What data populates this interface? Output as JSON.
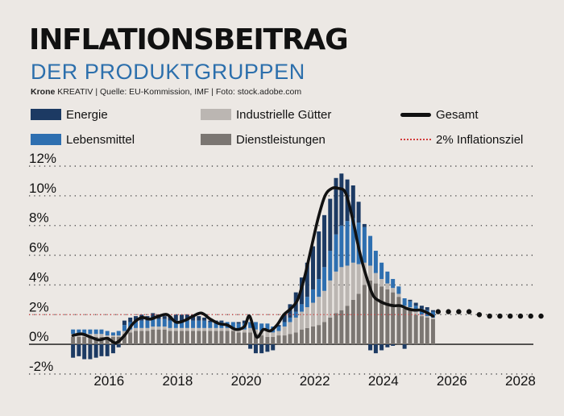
{
  "header": {
    "title": "INFLATIONSBEITRAG",
    "subtitle": "DER PRODUKTGRUPPEN",
    "source_brand": "Krone",
    "source_rest": " KREATIV | Quelle: EU-Kommission, IMF | Foto: stock.adobe.com"
  },
  "colors": {
    "background": "#ece8e4",
    "energie": "#1c3a63",
    "lebensmittel": "#2e6fb0",
    "industrielle_gueter": "#bbb6b2",
    "dienstleistungen": "#7b7672",
    "gesamt": "#111111",
    "target": "#d23c3c",
    "subtitle": "#2c6fac"
  },
  "legend": {
    "energie": "Energie",
    "lebensmittel": "Lebensmittel",
    "industrielle_gueter": "Industrielle Gütter",
    "dienstleistungen": "Dienstleistungen",
    "gesamt": "Gesamt",
    "target": "2% Inflationsziel"
  },
  "chart_data": {
    "type": "bar",
    "stacked": true,
    "grid": true,
    "legend_position": "top",
    "xlim": [
      2014.7,
      2028.8
    ],
    "ylim": [
      -2.6,
      12.6
    ],
    "x_ticks": [
      {
        "value": 2016,
        "label": "2016"
      },
      {
        "value": 2018,
        "label": "2018"
      },
      {
        "value": 2020,
        "label": "2020"
      },
      {
        "value": 2022,
        "label": "2022"
      },
      {
        "value": 2024,
        "label": "2024"
      },
      {
        "value": 2026,
        "label": "2026"
      },
      {
        "value": 2028,
        "label": "2028"
      }
    ],
    "y_ticks": [
      {
        "value": 12,
        "label": "12%"
      },
      {
        "value": 10,
        "label": "10%"
      },
      {
        "value": 8,
        "label": "8%"
      },
      {
        "value": 6,
        "label": "6%"
      },
      {
        "value": 4,
        "label": "4%"
      },
      {
        "value": 2,
        "label": "2%"
      },
      {
        "value": 0,
        "label": "0%"
      },
      {
        "value": -2,
        "label": "-2%"
      }
    ],
    "target": 2,
    "x": [
      2014.95,
      2015.12,
      2015.28,
      2015.45,
      2015.62,
      2015.78,
      2015.95,
      2016.12,
      2016.28,
      2016.45,
      2016.62,
      2016.78,
      2016.95,
      2017.12,
      2017.28,
      2017.45,
      2017.62,
      2017.78,
      2017.95,
      2018.12,
      2018.28,
      2018.45,
      2018.62,
      2018.78,
      2018.95,
      2019.12,
      2019.28,
      2019.45,
      2019.62,
      2019.78,
      2019.95,
      2020.12,
      2020.28,
      2020.45,
      2020.62,
      2020.78,
      2020.95,
      2021.12,
      2021.28,
      2021.45,
      2021.62,
      2021.78,
      2021.95,
      2022.12,
      2022.28,
      2022.45,
      2022.62,
      2022.78,
      2022.95,
      2023.12,
      2023.28,
      2023.45,
      2023.62,
      2023.78,
      2023.95,
      2024.12,
      2024.28,
      2024.45,
      2024.62,
      2024.78,
      2024.95,
      2025.12,
      2025.28,
      2025.45
    ],
    "series": [
      {
        "name": "Dienstleistungen",
        "key": "dienstleistungen",
        "values": [
          0.5,
          0.5,
          0.5,
          0.5,
          0.5,
          0.5,
          0.5,
          0.5,
          0.5,
          0.7,
          0.8,
          0.9,
          0.9,
          0.9,
          1.0,
          1.0,
          1.0,
          0.9,
          0.9,
          0.9,
          0.9,
          0.9,
          0.9,
          0.9,
          0.9,
          0.9,
          0.9,
          0.9,
          0.9,
          0.8,
          0.8,
          0.8,
          0.7,
          0.6,
          0.5,
          0.5,
          0.6,
          0.6,
          0.7,
          0.8,
          1.0,
          1.1,
          1.2,
          1.3,
          1.5,
          1.8,
          2.1,
          2.3,
          2.6,
          3.0,
          3.4,
          4.0,
          4.3,
          4.1,
          3.9,
          3.7,
          3.5,
          3.2,
          2.4,
          2.3,
          2.0,
          1.9,
          1.8,
          1.7
        ]
      },
      {
        "name": "Industrielle Gütter",
        "key": "industrielle_gueter",
        "values": [
          0.2,
          0.2,
          0.2,
          0.2,
          0.2,
          0.2,
          0.1,
          0.1,
          0.1,
          0.2,
          0.2,
          0.2,
          0.2,
          0.2,
          0.2,
          0.2,
          0.2,
          0.2,
          0.2,
          0.2,
          0.2,
          0.2,
          0.2,
          0.2,
          0.2,
          0.2,
          0.2,
          0.2,
          0.2,
          0.2,
          0.2,
          0.3,
          0.3,
          0.3,
          0.4,
          0.3,
          0.3,
          0.6,
          0.8,
          1.0,
          1.2,
          1.4,
          1.6,
          1.9,
          2.1,
          2.5,
          2.8,
          2.9,
          2.7,
          2.5,
          2.0,
          1.5,
          1.0,
          0.7,
          0.5,
          0.4,
          0.3,
          0.2,
          0.2,
          0.2,
          0.2,
          0.1,
          0.1,
          0.1
        ]
      },
      {
        "name": "Lebensmittel",
        "key": "lebensmittel",
        "values": [
          0.3,
          0.3,
          0.3,
          0.3,
          0.3,
          0.3,
          0.3,
          0.2,
          0.3,
          0.4,
          0.5,
          0.5,
          0.5,
          0.5,
          0.5,
          0.5,
          0.5,
          0.5,
          0.5,
          0.5,
          0.5,
          0.5,
          0.5,
          0.5,
          0.4,
          0.4,
          0.4,
          0.4,
          0.4,
          0.4,
          0.4,
          0.4,
          0.5,
          0.5,
          0.5,
          0.4,
          0.3,
          0.3,
          0.3,
          0.4,
          0.5,
          0.7,
          0.9,
          1.2,
          1.6,
          2.0,
          2.5,
          2.8,
          3.0,
          3.0,
          2.8,
          2.4,
          2.0,
          1.5,
          1.1,
          0.8,
          0.6,
          0.5,
          0.5,
          0.4,
          0.4,
          0.4,
          0.4,
          0.4
        ]
      },
      {
        "name": "Energie",
        "key": "energie",
        "values": [
          -0.9,
          -0.8,
          -1.0,
          -1.0,
          -0.9,
          -0.8,
          -0.8,
          -0.6,
          -0.2,
          0.3,
          0.3,
          0.3,
          0.4,
          0.3,
          0.4,
          0.3,
          0.2,
          0.3,
          0.4,
          0.4,
          0.4,
          0.4,
          0.3,
          0.2,
          0.1,
          0.1,
          0.1,
          0.0,
          0.0,
          0.1,
          0.2,
          -0.3,
          -0.6,
          -0.6,
          -0.5,
          -0.4,
          0.1,
          0.5,
          0.9,
          1.3,
          1.8,
          2.3,
          2.9,
          3.2,
          3.5,
          3.5,
          3.8,
          3.5,
          2.8,
          2.2,
          1.4,
          0.2,
          -0.4,
          -0.6,
          -0.4,
          -0.2,
          -0.1,
          0.0,
          -0.3,
          0.1,
          0.2,
          0.2,
          0.2,
          0.1
        ]
      }
    ],
    "gesamt": {
      "x": [
        2014.95,
        2015.2,
        2015.45,
        2015.7,
        2015.95,
        2016.2,
        2016.45,
        2016.7,
        2016.95,
        2017.2,
        2017.45,
        2017.7,
        2017.95,
        2018.2,
        2018.45,
        2018.7,
        2018.95,
        2019.2,
        2019.45,
        2019.7,
        2019.95,
        2020.1,
        2020.3,
        2020.5,
        2020.7,
        2020.9,
        2021.1,
        2021.3,
        2021.5,
        2021.7,
        2021.9,
        2022.1,
        2022.3,
        2022.5,
        2022.7,
        2022.9,
        2023.1,
        2023.3,
        2023.5,
        2023.7,
        2023.9,
        2024.1,
        2024.3,
        2024.5,
        2024.7,
        2024.9,
        2025.1,
        2025.3,
        2025.45
      ],
      "values": [
        0.6,
        0.7,
        0.5,
        0.3,
        0.4,
        0.1,
        0.6,
        1.4,
        1.8,
        1.7,
        1.9,
        2.0,
        1.5,
        1.6,
        1.9,
        2.1,
        1.7,
        1.4,
        1.3,
        1.0,
        1.2,
        1.9,
        0.5,
        1.0,
        0.9,
        1.3,
        2.0,
        2.4,
        3.0,
        4.5,
        6.5,
        8.5,
        10.0,
        10.5,
        10.5,
        10.2,
        8.5,
        6.3,
        4.6,
        3.3,
        2.9,
        2.7,
        2.6,
        2.6,
        2.4,
        2.3,
        2.3,
        2.1,
        1.9
      ]
    },
    "forecast": {
      "x": [
        2025.6,
        2025.9,
        2026.2,
        2026.5,
        2026.8,
        2027.1,
        2027.4,
        2027.7,
        2028.0,
        2028.3,
        2028.6
      ],
      "values": [
        2.2,
        2.2,
        2.2,
        2.2,
        2.0,
        1.9,
        1.9,
        1.9,
        1.9,
        1.9,
        1.9
      ]
    }
  }
}
